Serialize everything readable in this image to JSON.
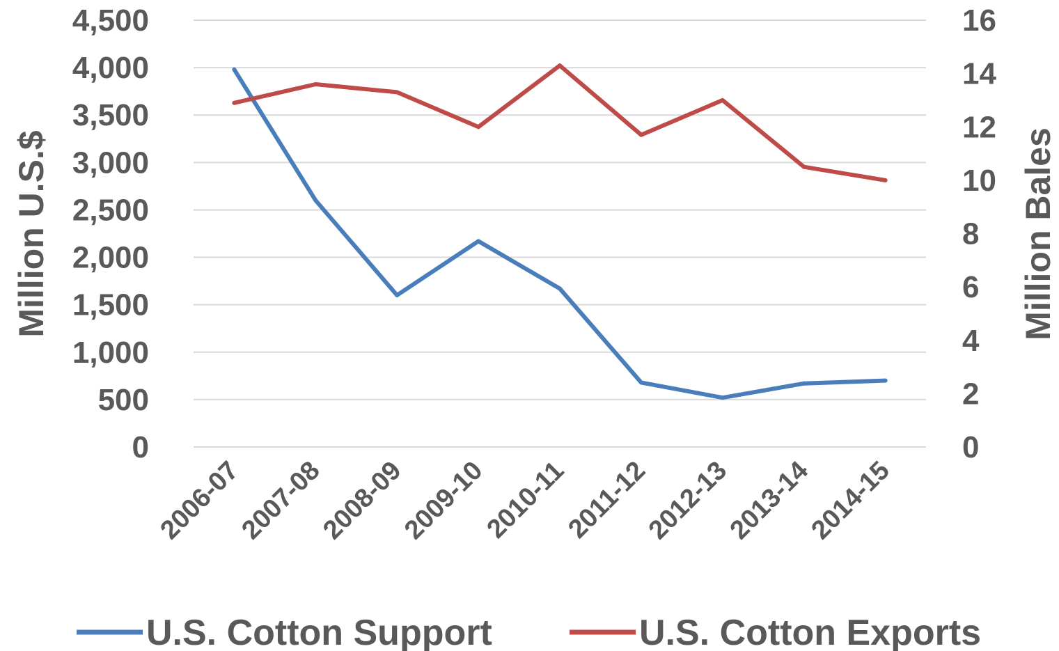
{
  "chart_data": {
    "type": "line",
    "categories": [
      "2006-07",
      "2007-08",
      "2008-09",
      "2009-10",
      "2010-11",
      "2011-12",
      "2012-13",
      "2013-14",
      "2014-15"
    ],
    "ylabel": "Million U.S.$",
    "y2label": "Million Bales",
    "ylim": [
      0,
      4500
    ],
    "y2lim": [
      0,
      16
    ],
    "yticks": [
      "0",
      "500",
      "1,000",
      "1,500",
      "2,000",
      "2,500",
      "3,000",
      "3,500",
      "4,000",
      "4,500"
    ],
    "y2ticks": [
      "0",
      "2",
      "4",
      "6",
      "8",
      "10",
      "12",
      "14",
      "16"
    ],
    "grid": true,
    "legend_position": "bottom",
    "series": [
      {
        "name": "U.S. Cotton Support",
        "axis": "left",
        "color": "#4a7ebb",
        "values": [
          3980,
          2600,
          1600,
          2170,
          1670,
          680,
          520,
          670,
          700
        ]
      },
      {
        "name": "U.S. Cotton Exports",
        "axis": "right",
        "color": "#be4b48",
        "values": [
          12.9,
          13.6,
          13.3,
          12.0,
          14.3,
          11.7,
          13.0,
          10.5,
          10.0
        ]
      }
    ]
  }
}
